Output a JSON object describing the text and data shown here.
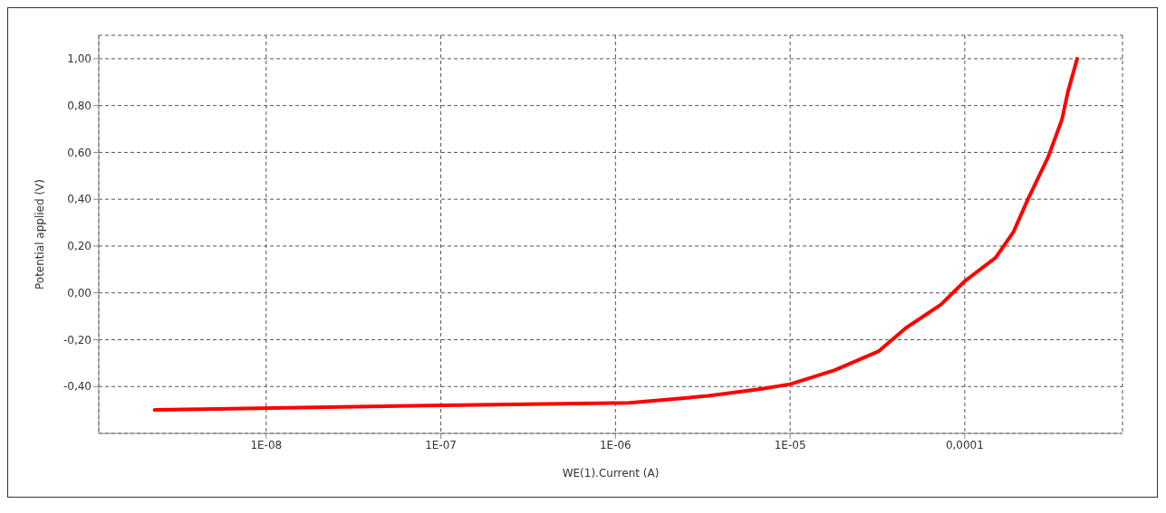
{
  "chart_data": {
    "type": "line",
    "xlabel": "WE(1).Current (A)",
    "ylabel": "Potential applied (V)",
    "log": "x",
    "x": [
      2.3e-09,
      1e-07,
      1.2e-06,
      3.4e-06,
      6.9e-06,
      1e-05,
      1.8e-05,
      3.2e-05,
      4.6e-05,
      7.3e-05,
      0.0001,
      0.00015,
      0.00019,
      0.00023,
      0.0003,
      0.00036,
      0.00039,
      0.00044
    ],
    "series": [
      {
        "color": "#ff0000",
        "values": [
          -0.5,
          -0.48,
          -0.47,
          -0.44,
          -0.41,
          -0.39,
          -0.33,
          -0.25,
          -0.15,
          -0.05,
          0.05,
          0.15,
          0.26,
          0.4,
          0.58,
          0.74,
          0.86,
          1.0
        ]
      }
    ],
    "xlim": [
      1.1e-09,
      0.0008
    ],
    "xticks": [
      {
        "value": 1e-08,
        "label": "1E-08"
      },
      {
        "value": 1e-07,
        "label": "1E-07"
      },
      {
        "value": 1e-06,
        "label": "1E-06"
      },
      {
        "value": 1e-05,
        "label": "1E-05"
      },
      {
        "value": 0.0001,
        "label": "0,0001"
      }
    ],
    "ylim": [
      -0.6,
      1.1
    ],
    "yticks": [
      {
        "value": -0.4,
        "label": "-0,40"
      },
      {
        "value": -0.2,
        "label": "-0,20"
      },
      {
        "value": 0,
        "label": "0,00"
      },
      {
        "value": 0.2,
        "label": "0,20"
      },
      {
        "value": 0.4,
        "label": "0,40"
      },
      {
        "value": 0.6,
        "label": "0,60"
      },
      {
        "value": 0.8,
        "label": "0,80"
      },
      {
        "value": 1.0,
        "label": "1,00"
      }
    ],
    "grid": true,
    "legend": false,
    "marker": "none",
    "line_style": "solid"
  }
}
